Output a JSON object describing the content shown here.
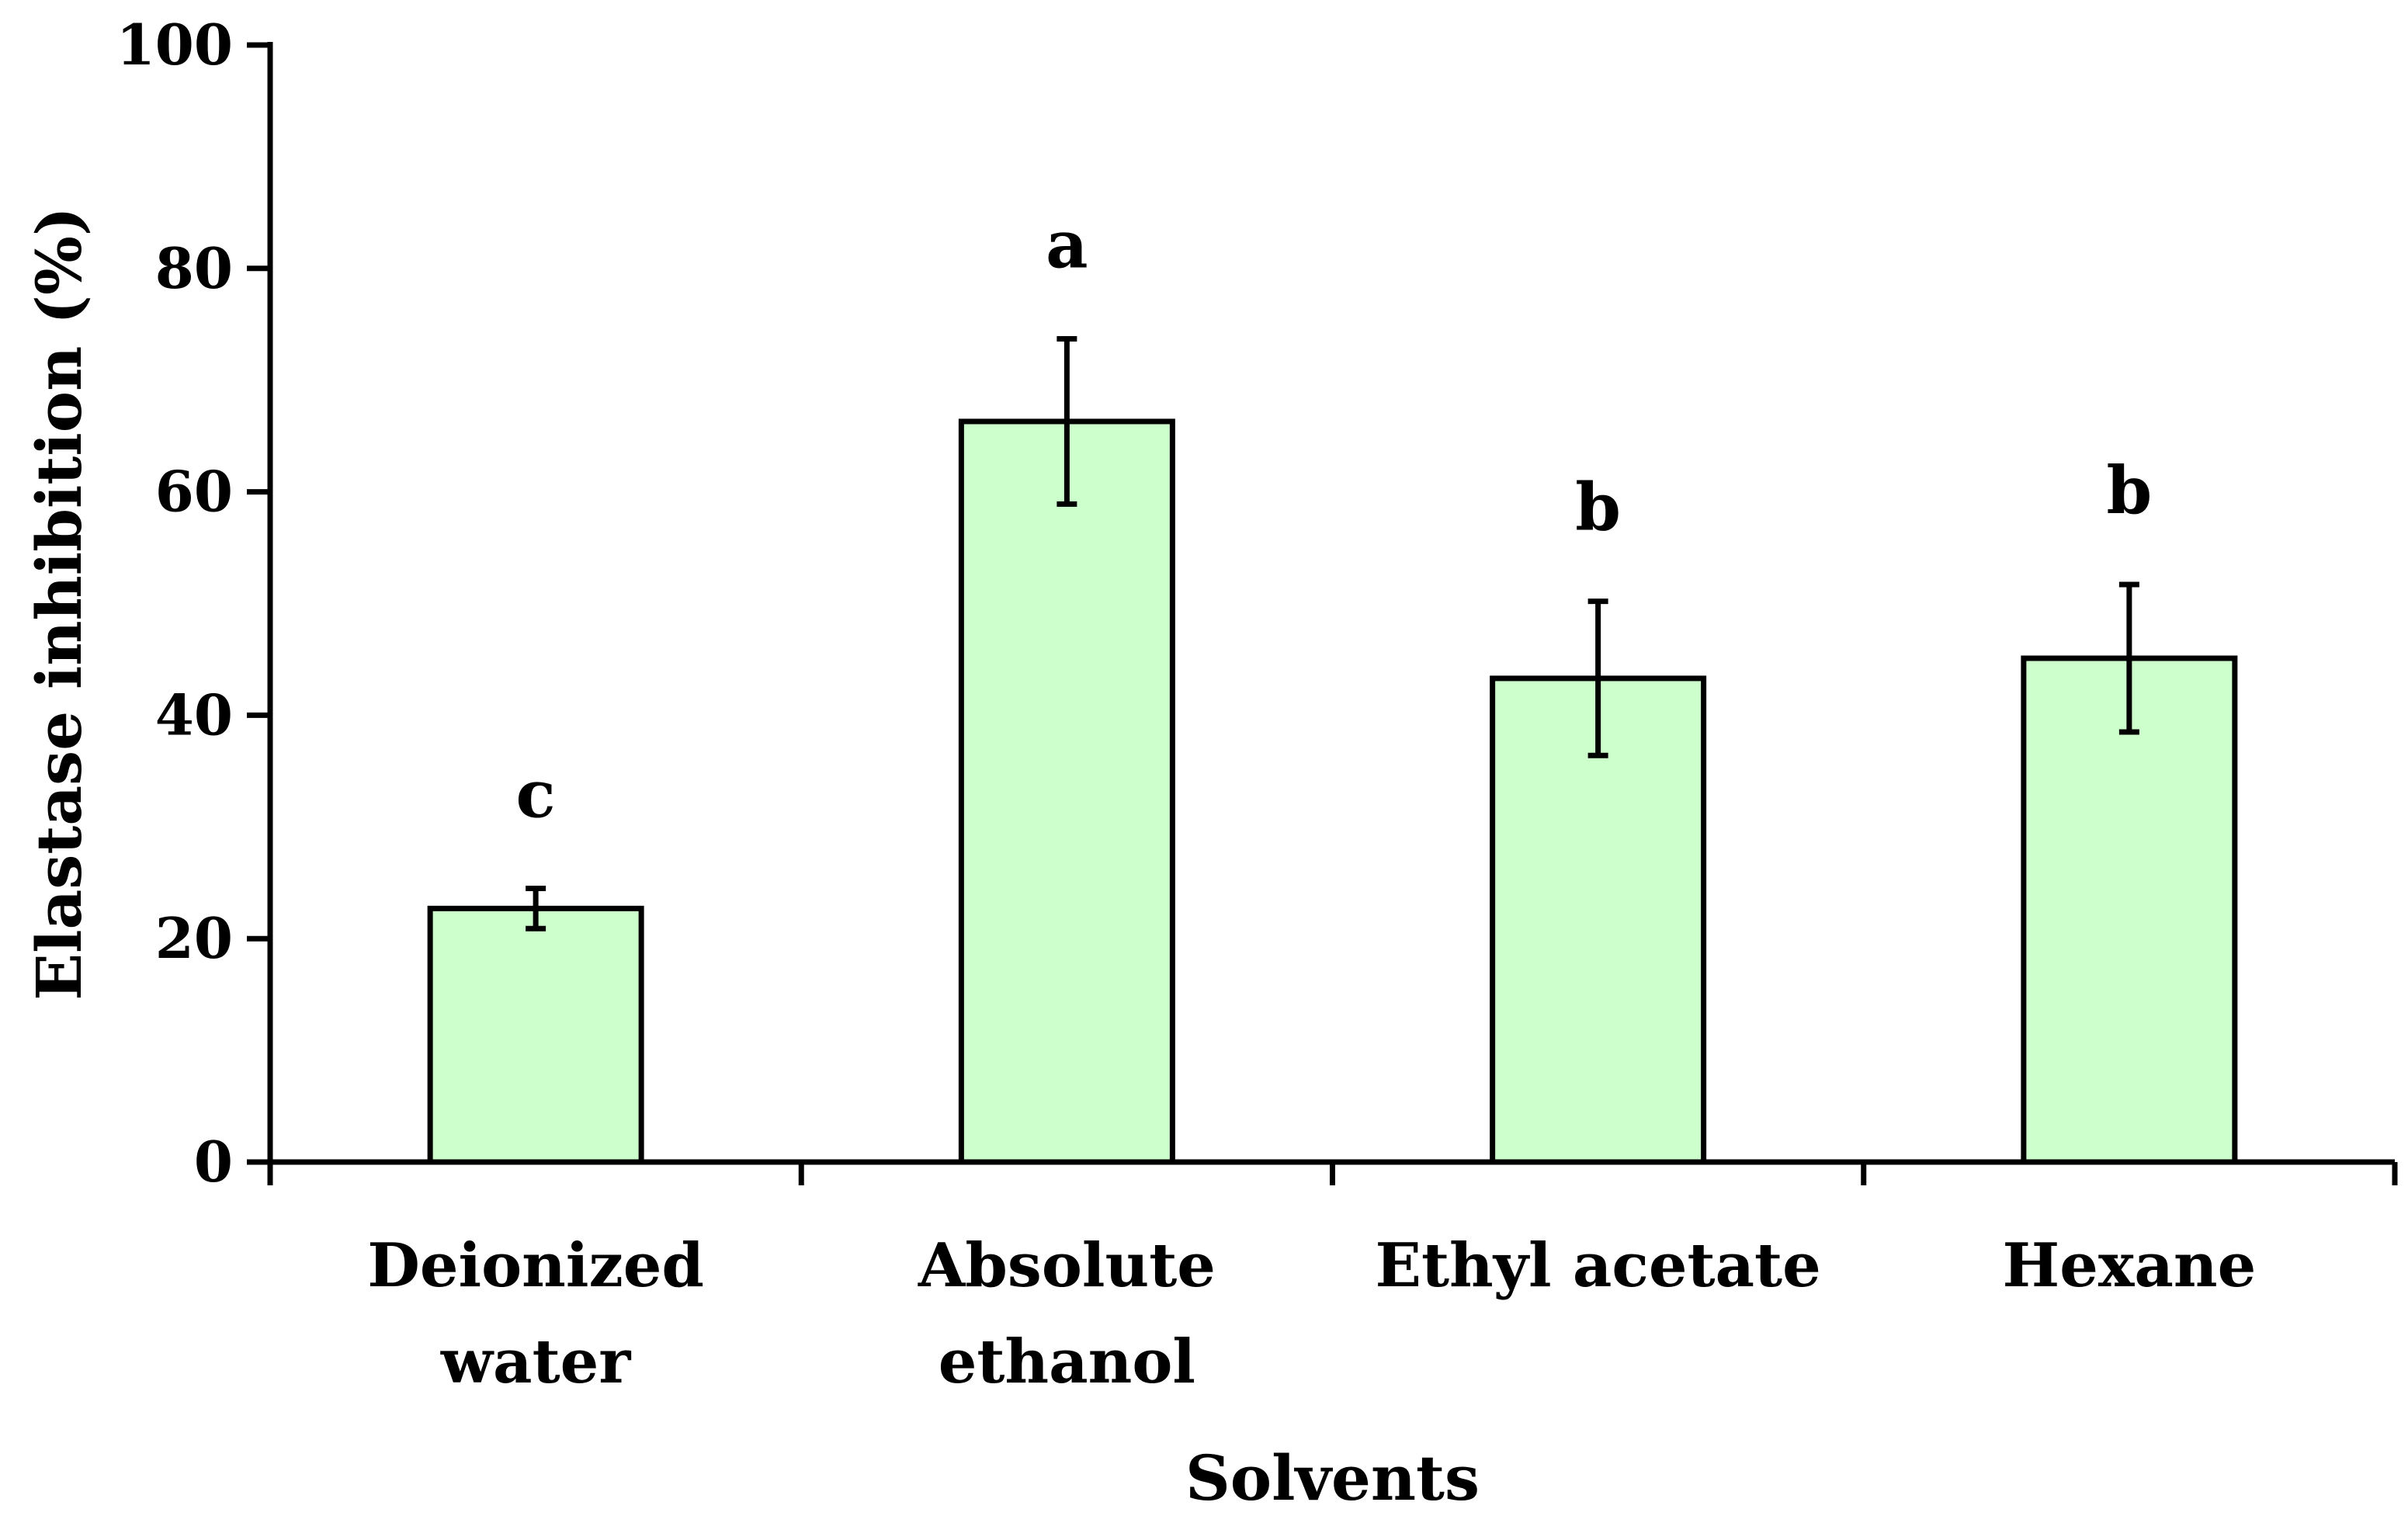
{
  "chart_data": {
    "type": "bar",
    "title": "",
    "xlabel": "Solvents",
    "ylabel": "Elastase inhibition (%)",
    "ylim": [
      0,
      100
    ],
    "yticks": [
      0,
      20,
      40,
      60,
      80,
      100
    ],
    "categories": [
      [
        "Deionized",
        "water"
      ],
      [
        "Absolute",
        "ethanol"
      ],
      [
        "Ethyl acetate"
      ],
      [
        "Hexane"
      ]
    ],
    "values": [
      22.7,
      66.3,
      43.3,
      45.1
    ],
    "errors": [
      1.8,
      7.4,
      6.9,
      6.6
    ],
    "significance_letters": [
      "c",
      "a",
      "b",
      "b"
    ],
    "bar_color": "#ccffcc",
    "bar_edge_color": "#000000",
    "grid": false,
    "legend": "none"
  }
}
